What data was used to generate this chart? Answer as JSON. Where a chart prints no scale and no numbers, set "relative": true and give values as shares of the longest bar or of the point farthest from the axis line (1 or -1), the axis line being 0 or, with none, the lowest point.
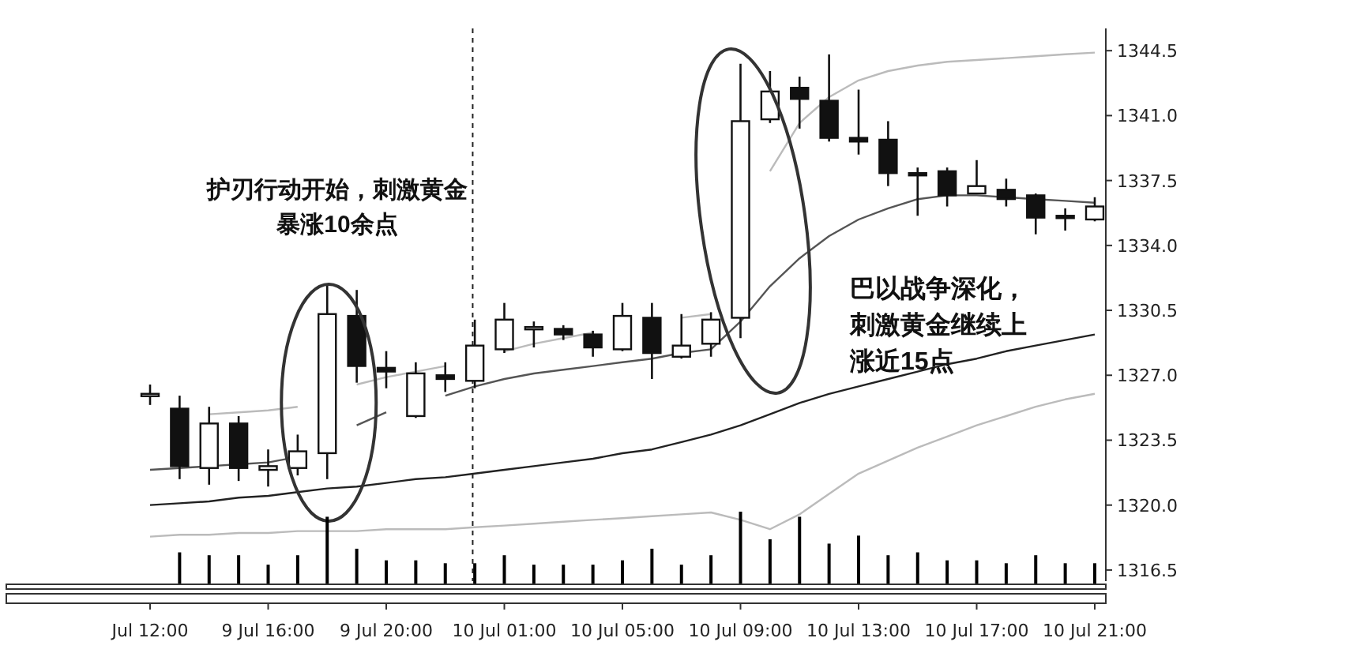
{
  "chart_data": [
    {
      "type": "candlestick",
      "categories": [
        "Jul 12:00",
        null,
        null,
        null,
        "9 Jul 16:00",
        null,
        null,
        null,
        "9 Jul 20:00",
        null,
        null,
        null,
        "10 Jul 01:00",
        null,
        null,
        null,
        "10 Jul 05:00",
        null,
        null,
        null,
        "10 Jul 09:00",
        null,
        null,
        null,
        "10 Jul 13:00",
        null,
        null,
        null,
        "10 Jul 17:00",
        null,
        null,
        null,
        "10 Jul 21:00"
      ],
      "ohlc": [
        [
          1326.0,
          1326.5,
          1325.4,
          1326.0
        ],
        [
          1325.2,
          1325.9,
          1321.4,
          1322.1
        ],
        [
          1322.0,
          1325.3,
          1321.1,
          1324.4
        ],
        [
          1324.4,
          1324.8,
          1321.3,
          1322.0
        ],
        [
          1321.9,
          1323.0,
          1321.0,
          1322.1
        ],
        [
          1322.0,
          1323.8,
          1321.6,
          1322.9
        ],
        [
          1322.8,
          1331.9,
          1321.4,
          1330.3
        ],
        [
          1330.2,
          1331.6,
          1326.6,
          1327.5
        ],
        [
          1327.4,
          1328.3,
          1326.3,
          1327.2
        ],
        [
          1324.8,
          1327.7,
          1324.7,
          1327.1
        ],
        [
          1327.0,
          1327.7,
          1326.1,
          1326.8
        ],
        [
          1326.7,
          1330.0,
          1326.3,
          1328.6
        ],
        [
          1328.4,
          1330.9,
          1328.2,
          1330.0
        ],
        [
          1329.5,
          1329.9,
          1328.5,
          1329.6
        ],
        [
          1329.5,
          1329.7,
          1328.9,
          1329.2
        ],
        [
          1329.2,
          1329.4,
          1328.0,
          1328.5
        ],
        [
          1328.4,
          1330.9,
          1328.3,
          1330.2
        ],
        [
          1330.1,
          1330.9,
          1326.8,
          1328.2
        ],
        [
          1328.0,
          1330.3,
          1327.9,
          1328.6
        ],
        [
          1328.7,
          1330.4,
          1328.0,
          1330.0
        ],
        [
          1330.1,
          1343.8,
          1329.0,
          1340.7
        ],
        [
          1340.8,
          1343.4,
          1340.6,
          1342.3
        ],
        [
          1342.5,
          1343.1,
          1340.3,
          1341.9
        ],
        [
          1341.8,
          1344.3,
          1339.6,
          1339.8
        ],
        [
          1339.8,
          1342.4,
          1338.9,
          1339.6
        ],
        [
          1339.7,
          1340.7,
          1337.2,
          1337.9
        ],
        [
          1337.9,
          1338.2,
          1335.6,
          1337.8
        ],
        [
          1338.0,
          1338.2,
          1336.1,
          1336.7
        ],
        [
          1336.8,
          1338.6,
          1336.8,
          1337.2
        ],
        [
          1337.0,
          1337.6,
          1336.1,
          1336.5
        ],
        [
          1336.7,
          1336.8,
          1334.6,
          1335.5
        ],
        [
          1335.6,
          1336.0,
          1334.8,
          1335.5
        ],
        [
          1335.4,
          1336.6,
          1335.3,
          1336.1
        ]
      ],
      "series": [
        {
          "type": "line",
          "color": "#bbbbbb",
          "values": [
            null,
            null,
            1324.9,
            1325.0,
            1325.1,
            1325.3,
            null,
            1326.5,
            1326.9,
            1327.2,
            1327.5,
            null,
            1328.3,
            1328.7,
            1329.0,
            1329.3,
            null,
            null,
            1330.1,
            1330.3,
            null,
            1338.0,
            1340.6,
            1342.0,
            1342.9,
            1343.4,
            1343.7,
            1343.9,
            1344.0,
            1344.1,
            1344.2,
            1344.3,
            1344.4
          ]
        },
        {
          "type": "line",
          "color": "#555555",
          "values": [
            1321.9,
            1322.0,
            1322.1,
            1322.2,
            1322.3,
            1322.6,
            null,
            1324.3,
            1325.0,
            null,
            1325.9,
            1326.4,
            1326.8,
            1327.1,
            1327.3,
            1327.5,
            1327.7,
            1327.9,
            1328.2,
            1328.4,
            1329.9,
            1331.8,
            1333.3,
            1334.5,
            1335.4,
            1336.0,
            1336.5,
            1336.7,
            1336.7,
            1336.6,
            1336.5,
            1336.4,
            1336.3
          ]
        },
        {
          "type": "line",
          "color": "#222222",
          "values": [
            1320.0,
            1320.1,
            1320.2,
            1320.4,
            1320.5,
            1320.7,
            1320.9,
            1321.0,
            1321.2,
            1321.4,
            1321.5,
            1321.7,
            1321.9,
            1322.1,
            1322.3,
            1322.5,
            1322.8,
            1323.0,
            1323.4,
            1323.8,
            1324.3,
            1324.9,
            1325.5,
            1326.0,
            1326.4,
            1326.8,
            1327.2,
            1327.6,
            1327.9,
            1328.3,
            1328.6,
            1328.9,
            1329.2
          ]
        },
        {
          "type": "line",
          "color": "#bbbbbb",
          "values": [
            1318.3,
            1318.4,
            1318.4,
            1318.5,
            1318.5,
            1318.6,
            1318.6,
            1318.6,
            1318.7,
            1318.7,
            1318.7,
            1318.8,
            1318.9,
            1319.0,
            1319.1,
            1319.2,
            1319.3,
            1319.4,
            1319.5,
            1319.6,
            1319.2,
            1318.7,
            1319.5,
            1320.6,
            1321.7,
            1322.4,
            1323.1,
            1323.7,
            1324.3,
            1324.8,
            1325.3,
            1325.7,
            1326.0
          ]
        }
      ],
      "ylim": [
        1315.9,
        1345.7
      ],
      "yticks": [
        {
          "value": 1316.5,
          "label": "1316.5"
        },
        {
          "value": 1320.0,
          "label": "1320.0"
        },
        {
          "value": 1323.5,
          "label": "1323.5"
        },
        {
          "value": 1327.0,
          "label": "1327.0"
        },
        {
          "value": 1330.5,
          "label": "1330.5"
        },
        {
          "value": 1334.0,
          "label": "1334.0"
        },
        {
          "value": 1337.5,
          "label": "1337.5"
        },
        {
          "value": 1341.0,
          "label": "1341.0"
        },
        {
          "value": 1344.5,
          "label": "1344.5"
        }
      ],
      "annotations": [
        "护刃行动开始，刺激黄金暴涨10余点",
        "巴以战争深化，刺激黄金继续上涨近15点"
      ]
    },
    {
      "type": "bar",
      "relative": true,
      "color": "#000000",
      "categories": [
        null,
        null,
        null,
        null,
        null,
        null,
        null,
        null,
        null,
        null,
        null,
        null,
        null,
        null,
        null,
        null,
        null,
        null,
        null,
        null,
        null,
        null,
        null,
        null,
        null,
        null,
        null,
        null,
        null,
        null,
        null,
        null,
        null
      ],
      "values": [
        null,
        0.44,
        0.4,
        0.4,
        0.27,
        0.4,
        0.93,
        0.49,
        0.33,
        0.33,
        0.29,
        0.29,
        0.4,
        0.27,
        0.27,
        0.27,
        0.33,
        0.49,
        0.27,
        0.4,
        1,
        0.62,
        0.93,
        0.56,
        0.67,
        0.4,
        0.44,
        0.33,
        0.33,
        0.29,
        0.4,
        0.29,
        0.29
      ]
    }
  ]
}
